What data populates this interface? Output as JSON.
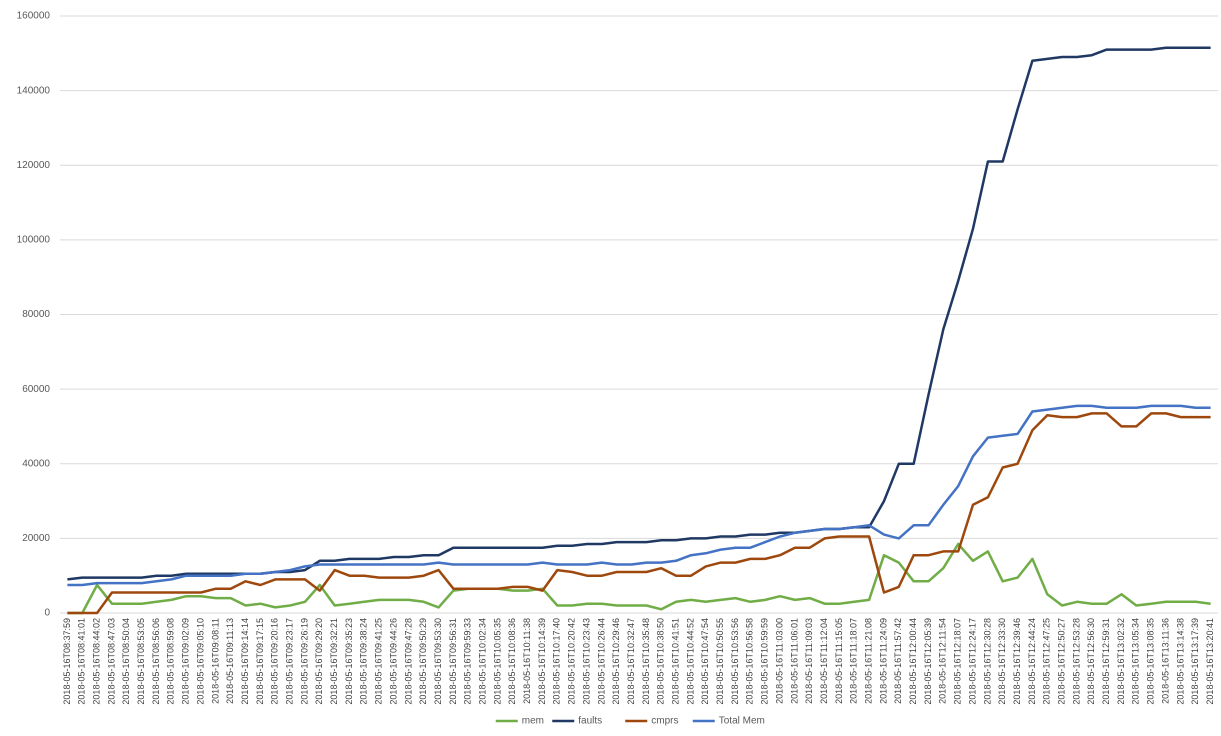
{
  "chart_data": {
    "type": "line",
    "categories": [
      "2018-05-16T08:37:59",
      "2018-05-16T08:41:01",
      "2018-05-16T08:44:02",
      "2018-05-16T08:47:03",
      "2018-05-16T08:50:04",
      "2018-05-16T08:53:05",
      "2018-05-16T08:56:06",
      "2018-05-16T08:59:08",
      "2018-05-16T09:02:09",
      "2018-05-16T09:05:10",
      "2018-05-16T09:08:11",
      "2018-05-16T09:11:13",
      "2018-05-16T09:14:14",
      "2018-05-16T09:17:15",
      "2018-05-16T09:20:16",
      "2018-05-16T09:23:17",
      "2018-05-16T09:26:19",
      "2018-05-16T09:29:20",
      "2018-05-16T09:32:21",
      "2018-05-16T09:35:23",
      "2018-05-16T09:38:24",
      "2018-05-16T09:41:25",
      "2018-05-16T09:44:26",
      "2018-05-16T09:47:28",
      "2018-05-16T09:50:29",
      "2018-05-16T09:53:30",
      "2018-05-16T09:56:31",
      "2018-05-16T09:59:33",
      "2018-05-16T10:02:34",
      "2018-05-16T10:05:35",
      "2018-05-16T10:08:36",
      "2018-05-16T10:11:38",
      "2018-05-16T10:14:39",
      "2018-05-16T10:17:40",
      "2018-05-16T10:20:42",
      "2018-05-16T10:23:43",
      "2018-05-16T10:26:44",
      "2018-05-16T10:29:46",
      "2018-05-16T10:32:47",
      "2018-05-16T10:35:48",
      "2018-05-16T10:38:50",
      "2018-05-16T10:41:51",
      "2018-05-16T10:44:52",
      "2018-05-16T10:47:54",
      "2018-05-16T10:50:55",
      "2018-05-16T10:53:56",
      "2018-05-16T10:56:58",
      "2018-05-16T10:59:59",
      "2018-05-16T11:03:00",
      "2018-05-16T11:06:01",
      "2018-05-16T11:09:03",
      "2018-05-16T11:12:04",
      "2018-05-16T11:15:05",
      "2018-05-16T11:18:07",
      "2018-05-16T11:21:08",
      "2018-05-16T11:24:09",
      "2018-05-16T11:57:42",
      "2018-05-16T12:00:44",
      "2018-05-16T12:05:39",
      "2018-05-16T12:11:54",
      "2018-05-16T12:18:07",
      "2018-05-16T12:24:17",
      "2018-05-16T12:30:28",
      "2018-05-16T12:33:30",
      "2018-05-16T12:39:46",
      "2018-05-16T12:44:24",
      "2018-05-16T12:47:25",
      "2018-05-16T12:50:27",
      "2018-05-16T12:53:28",
      "2018-05-16T12:56:30",
      "2018-05-16T12:59:31",
      "2018-05-16T13:02:32",
      "2018-05-16T13:05:34",
      "2018-05-16T13:08:35",
      "2018-05-16T13:11:36",
      "2018-05-16T13:14:38",
      "2018-05-16T13:17:39",
      "2018-05-16T13:20:41"
    ],
    "series": [
      {
        "name": "mem",
        "color": "#70ad47",
        "values": [
          0,
          0,
          7500,
          2500,
          2500,
          2500,
          3000,
          3500,
          4500,
          4500,
          4000,
          4000,
          2000,
          2500,
          1500,
          2000,
          3000,
          7500,
          2000,
          2500,
          3000,
          3500,
          3500,
          3500,
          3000,
          1500,
          6000,
          6500,
          6500,
          6500,
          6000,
          6000,
          6500,
          2000,
          2000,
          2500,
          2500,
          2000,
          2000,
          2000,
          1000,
          3000,
          3500,
          3000,
          3500,
          4000,
          3000,
          3500,
          4500,
          3500,
          4000,
          2500,
          2500,
          3000,
          3500,
          15500,
          13500,
          8500,
          8500,
          12000,
          18500,
          14000,
          16500,
          8500,
          9500,
          14500,
          5000,
          2000,
          3000,
          2500,
          2500,
          5000,
          2000,
          2500,
          3000,
          3000,
          3000,
          2500
        ]
      },
      {
        "name": "faults",
        "color": "#203864",
        "values": [
          9000,
          9500,
          9500,
          9500,
          9500,
          9500,
          10000,
          10000,
          10500,
          10500,
          10500,
          10500,
          10500,
          10500,
          11000,
          11000,
          11500,
          14000,
          14000,
          14500,
          14500,
          14500,
          15000,
          15000,
          15500,
          15500,
          17500,
          17500,
          17500,
          17500,
          17500,
          17500,
          17500,
          18000,
          18000,
          18500,
          18500,
          19000,
          19000,
          19000,
          19500,
          19500,
          20000,
          20000,
          20500,
          20500,
          21000,
          21000,
          21500,
          21500,
          22000,
          22500,
          22500,
          23000,
          23000,
          30000,
          40000,
          40000,
          58500,
          76000,
          89000,
          103000,
          121000,
          121000,
          135000,
          148000,
          148500,
          149000,
          149000,
          149500,
          151000,
          151000,
          151000,
          151000,
          151500,
          151500,
          151500,
          151500
        ]
      },
      {
        "name": "cmprs",
        "color": "#9e480e",
        "values": [
          0,
          0,
          0,
          5500,
          5500,
          5500,
          5500,
          5500,
          5500,
          5500,
          6500,
          6500,
          8500,
          7500,
          9000,
          9000,
          9000,
          6000,
          11500,
          10000,
          10000,
          9500,
          9500,
          9500,
          10000,
          11500,
          6500,
          6500,
          6500,
          6500,
          7000,
          7000,
          6000,
          11500,
          11000,
          10000,
          10000,
          11000,
          11000,
          11000,
          12000,
          10000,
          10000,
          12500,
          13500,
          13500,
          14500,
          14500,
          15500,
          17500,
          17500,
          20000,
          20500,
          20500,
          20500,
          5500,
          7000,
          15500,
          15500,
          16500,
          16500,
          29000,
          31000,
          39000,
          40000,
          49000,
          53000,
          52500,
          52500,
          53500,
          53500,
          50000,
          50000,
          53500,
          53500,
          52500,
          52500,
          52500
        ]
      },
      {
        "name": "Total Mem",
        "color": "#4472c4",
        "values": [
          7500,
          7500,
          8000,
          8000,
          8000,
          8000,
          8500,
          9000,
          10000,
          10000,
          10000,
          10000,
          10500,
          10500,
          11000,
          11500,
          12500,
          13000,
          13000,
          13000,
          13000,
          13000,
          13000,
          13000,
          13000,
          13500,
          13000,
          13000,
          13000,
          13000,
          13000,
          13000,
          13500,
          13000,
          13000,
          13000,
          13500,
          13000,
          13000,
          13500,
          13500,
          14000,
          15500,
          16000,
          17000,
          17500,
          17500,
          19000,
          20500,
          21500,
          22000,
          22500,
          22500,
          23000,
          23500,
          21000,
          20000,
          23500,
          23500,
          29000,
          34000,
          42000,
          47000,
          47500,
          48000,
          54000,
          54500,
          55000,
          55500,
          55500,
          55000,
          55000,
          55000,
          55500,
          55500,
          55500,
          55000,
          55000
        ]
      }
    ],
    "ylim": [
      0,
      160000
    ],
    "yticks": [
      0,
      20000,
      40000,
      60000,
      80000,
      100000,
      120000,
      140000,
      160000
    ],
    "grid": true,
    "legend": "bottom"
  }
}
